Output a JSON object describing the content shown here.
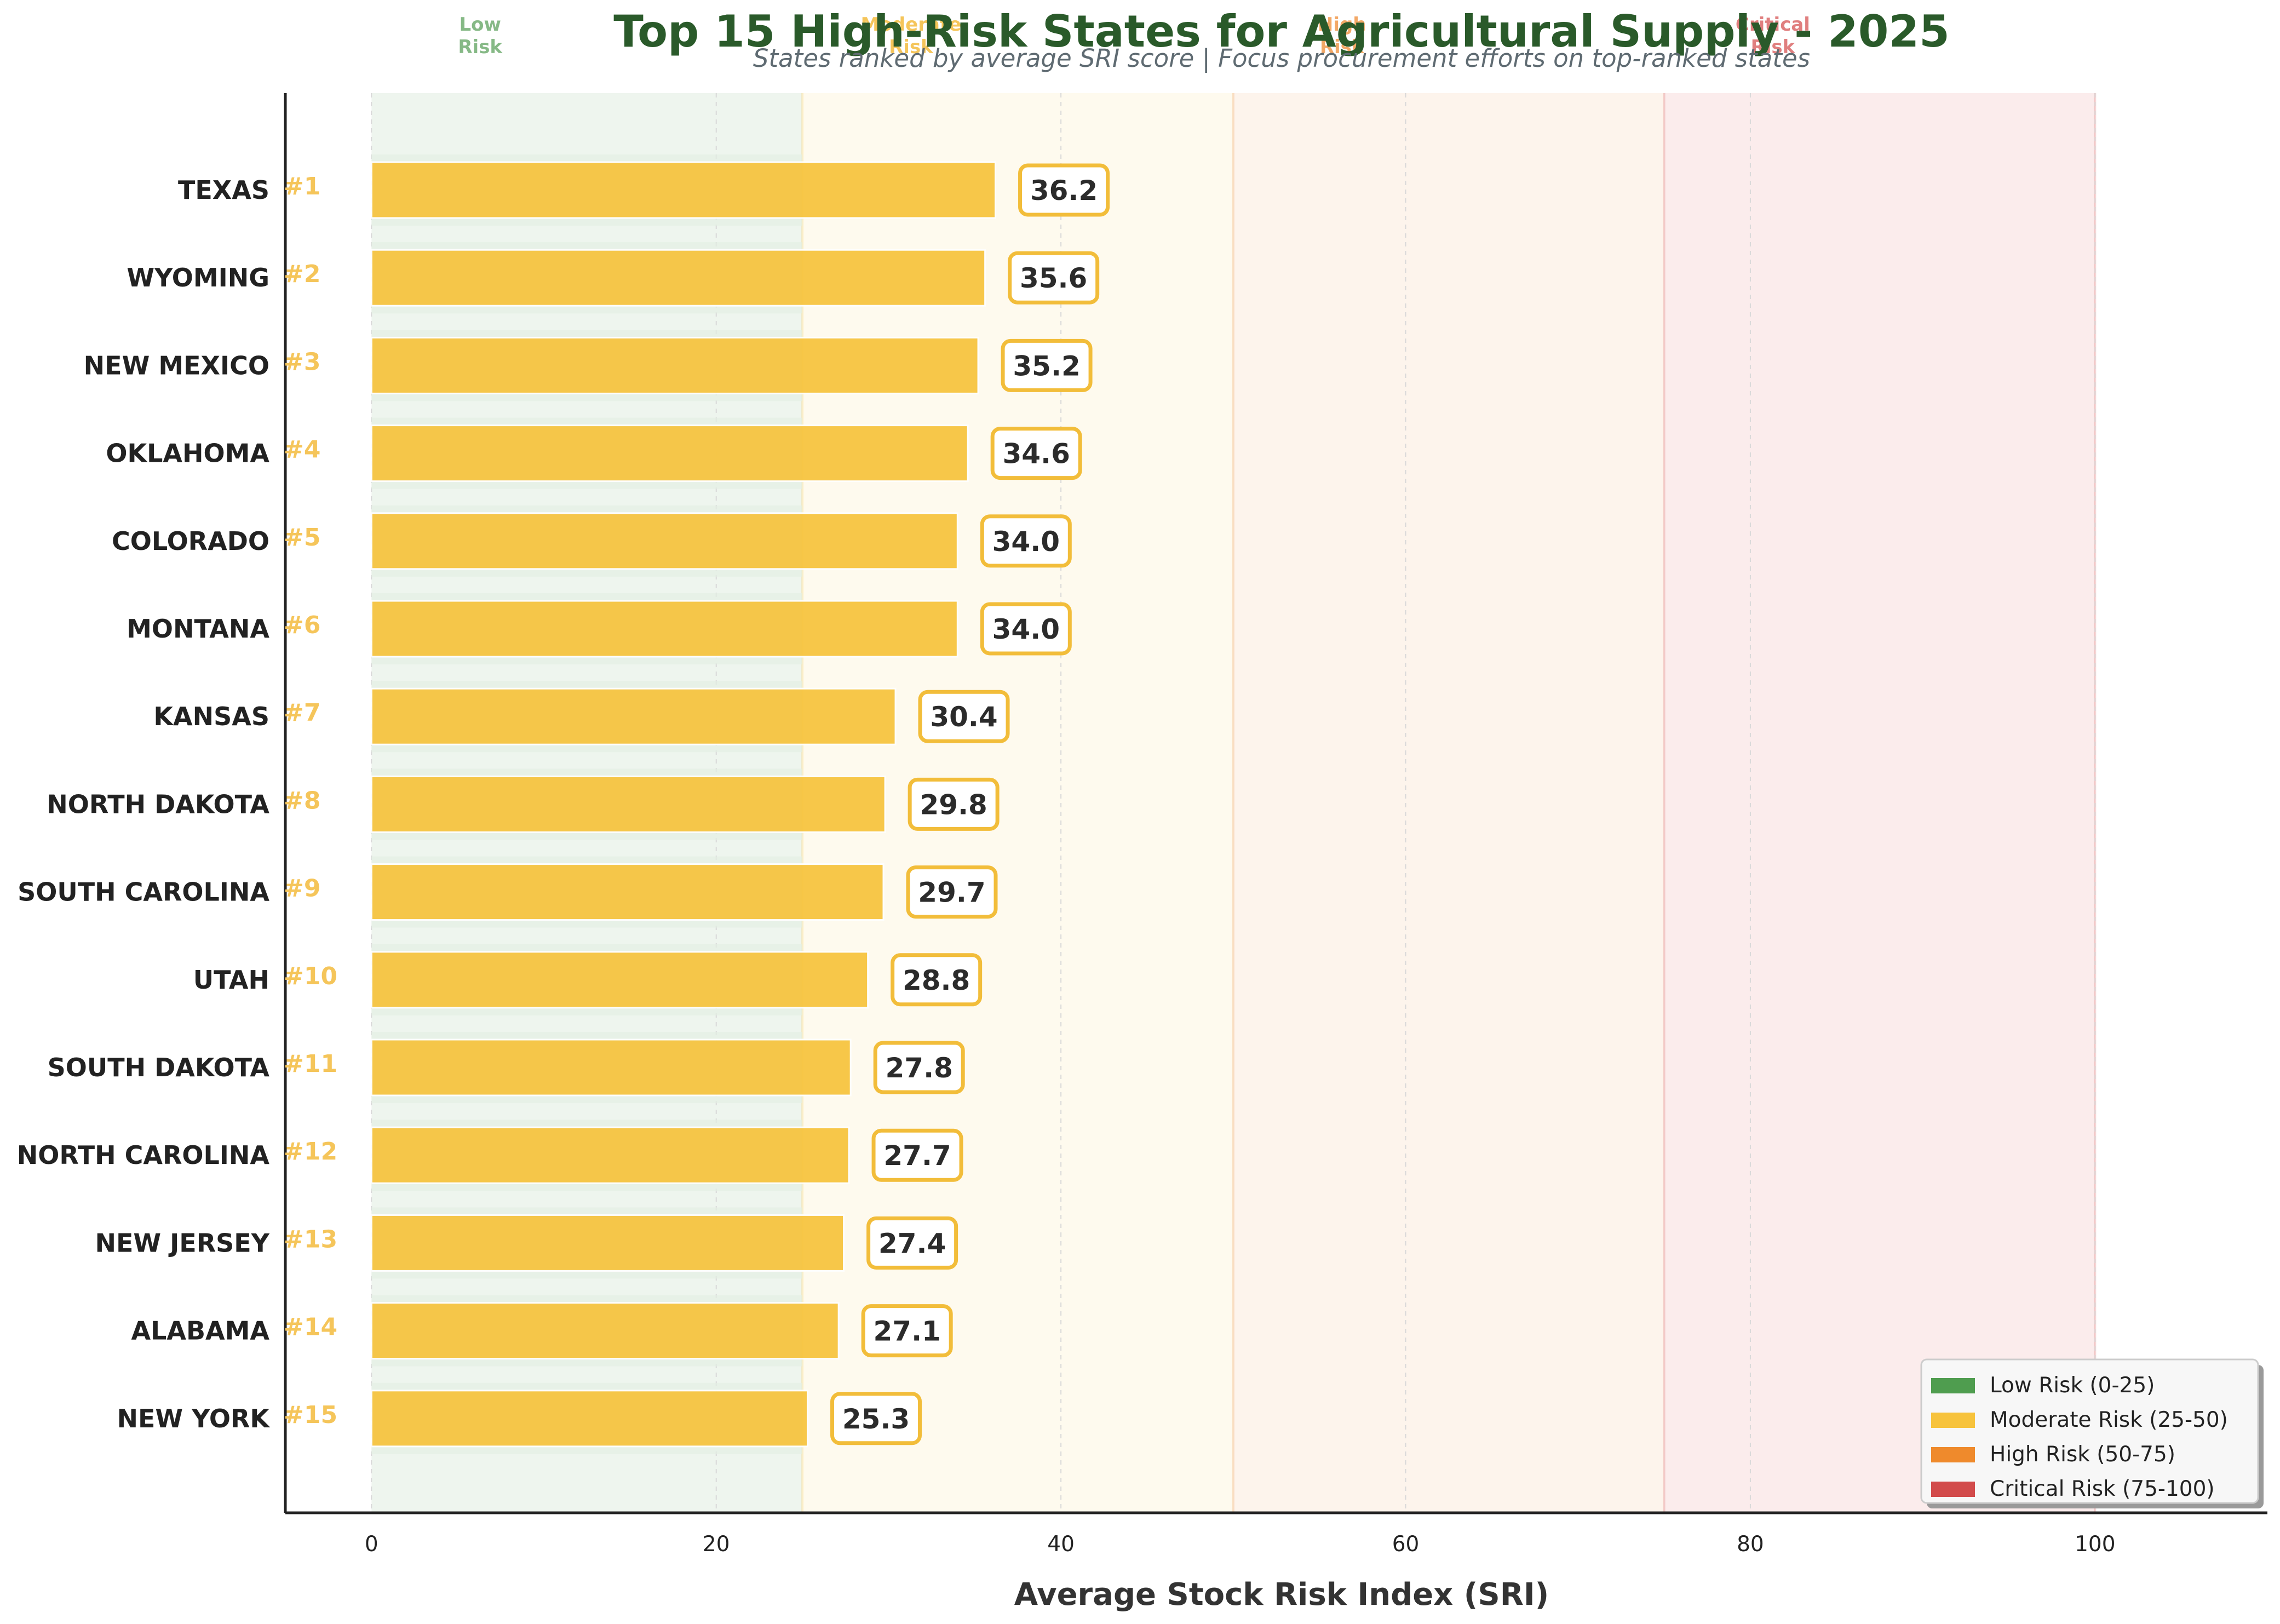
{
  "chart_data": {
    "type": "bar",
    "orientation": "horizontal",
    "title": "Top 15 High-Risk States for Agricultural Supply - 2025",
    "subtitle": "States ranked by average SRI score | Focus procurement efforts on top-ranked states",
    "xlabel": "Average Stock Risk Index (SRI)",
    "ylabel": "",
    "xlim": [
      -5,
      110
    ],
    "x_ticks": [
      0,
      20,
      40,
      60,
      80,
      100
    ],
    "grid": true,
    "legend_position": "bottom-right",
    "bar_color": "#f7c33c",
    "categories": [
      "TEXAS",
      "WYOMING",
      "NEW MEXICO",
      "OKLAHOMA",
      "COLORADO",
      "MONTANA",
      "KANSAS",
      "NORTH DAKOTA",
      "SOUTH CAROLINA",
      "UTAH",
      "SOUTH DAKOTA",
      "NORTH CAROLINA",
      "NEW JERSEY",
      "ALABAMA",
      "NEW YORK"
    ],
    "ranks": [
      "#1",
      "#2",
      "#3",
      "#4",
      "#5",
      "#6",
      "#7",
      "#8",
      "#9",
      "#10",
      "#11",
      "#12",
      "#13",
      "#14",
      "#15"
    ],
    "values": [
      36.2,
      35.6,
      35.2,
      34.6,
      34.0,
      34.0,
      30.4,
      29.8,
      29.7,
      28.8,
      27.8,
      27.7,
      27.4,
      27.1,
      25.3
    ],
    "value_labels": [
      "36.2",
      "35.6",
      "35.2",
      "34.6",
      "34.0",
      "34.0",
      "30.4",
      "29.8",
      "29.7",
      "28.8",
      "27.8",
      "27.7",
      "27.4",
      "27.1",
      "25.3"
    ],
    "risk_zones": [
      {
        "name": "Low Risk",
        "top_label": [
          "Low",
          "Risk"
        ],
        "from": 0,
        "to": 25,
        "color": "#4f9d4f",
        "band_color": "#eef5ee",
        "label_color": "#86b986"
      },
      {
        "name": "Moderate Risk",
        "top_label": [
          "Moderate",
          "Risk"
        ],
        "from": 25,
        "to": 50,
        "color": "#f7c33c",
        "band_color": "#fefaee",
        "label_color": "#f5c55a"
      },
      {
        "name": "High Risk",
        "top_label": [
          "High",
          "Risk"
        ],
        "from": 50,
        "to": 75,
        "color": "#ef8a2c",
        "band_color": "#fdf4ec",
        "label_color": "#f3a866"
      },
      {
        "name": "Critical Risk",
        "top_label": [
          "Critical",
          "Risk"
        ],
        "from": 75,
        "to": 100,
        "color": "#d24b4b",
        "band_color": "#fbecec",
        "label_color": "#e07f7f"
      }
    ],
    "legend": [
      "Low Risk (0-25)",
      "Moderate Risk (25-50)",
      "High Risk (50-75)",
      "Critical Risk (75-100)"
    ]
  }
}
